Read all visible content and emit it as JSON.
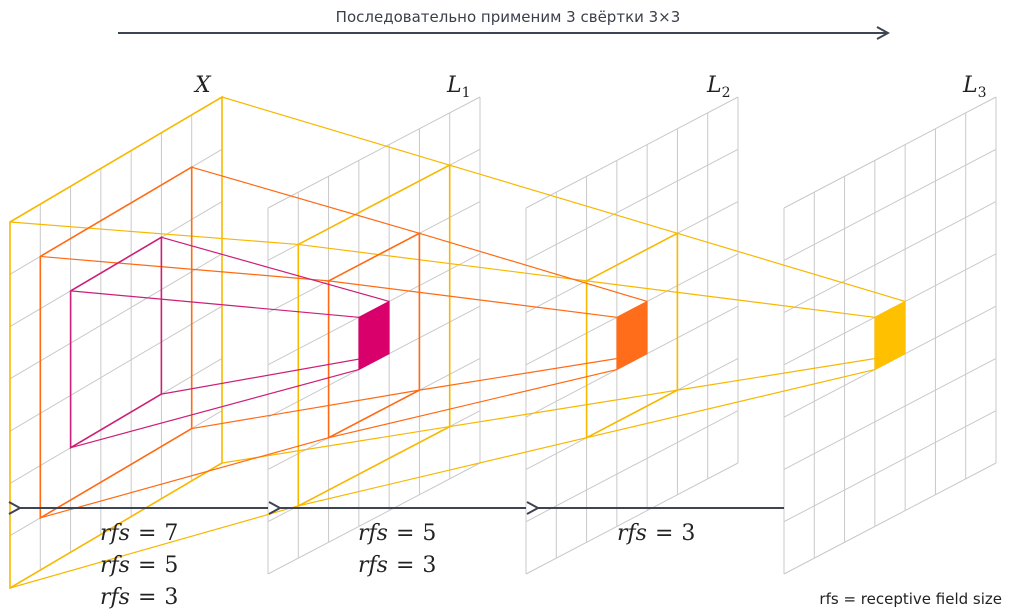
{
  "title": "Последовательно применим 3 свёртки 3×3",
  "layers": [
    {
      "name": "X",
      "sub": ""
    },
    {
      "name": "L",
      "sub": "1"
    },
    {
      "name": "L",
      "sub": "2"
    },
    {
      "name": "L",
      "sub": "3"
    }
  ],
  "rfs_groups": [
    {
      "lines": [
        {
          "var": "rfs",
          "eq": "=",
          "val": "7"
        },
        {
          "var": "rfs",
          "eq": "=",
          "val": "5"
        },
        {
          "var": "rfs",
          "eq": "=",
          "val": "3"
        }
      ]
    },
    {
      "lines": [
        {
          "var": "rfs",
          "eq": "=",
          "val": "5"
        },
        {
          "var": "rfs",
          "eq": "=",
          "val": "3"
        }
      ]
    },
    {
      "lines": [
        {
          "var": "rfs",
          "eq": "=",
          "val": "3"
        }
      ]
    }
  ],
  "footnote": "rfs = receptive field size",
  "grid": {
    "cells": 7
  },
  "colors": {
    "arrow": "#3d4452",
    "grid": "#c9c9c9",
    "yellow": "#ffc000",
    "orange": "#ff6d1a",
    "magenta": "#d9006c",
    "yellow_line": "#f8b800",
    "orange_line": "#ff6a13",
    "magenta_line": "#cc1f77"
  }
}
